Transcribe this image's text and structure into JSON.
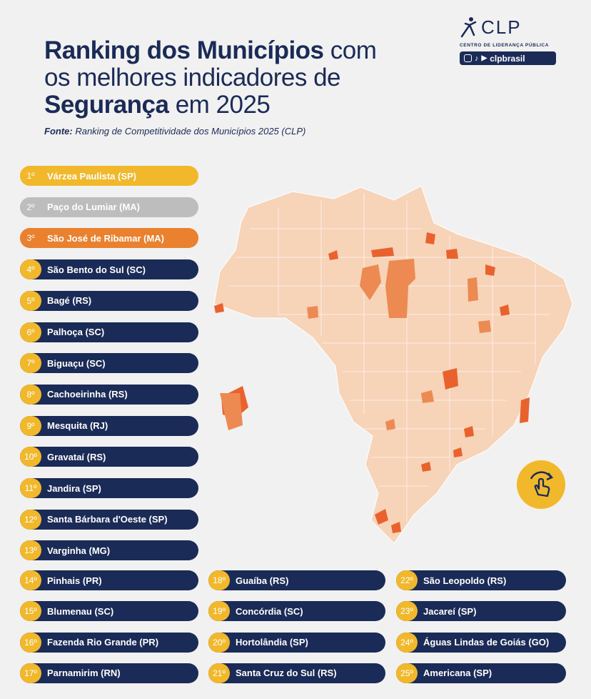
{
  "title": {
    "line1_bold": "Ranking dos Municípios",
    "line1_rest": " com",
    "line2": "os melhores indicadores de",
    "line3_bold": "Segurança",
    "line3_rest": " em 2025"
  },
  "source": {
    "label": "Fonte:",
    "text": " Ranking de Competitividade dos Municípios 2025 (CLP)"
  },
  "logo": {
    "name": "CLP",
    "subtitle": "CENTRO DE LIDERANÇA PÚBLICA",
    "handle": "clpbrasil",
    "icons": [
      "instagram-icon",
      "tiktok-icon",
      "youtube-icon"
    ]
  },
  "colors": {
    "navy": "#1b2b57",
    "gold": "#f1b82c",
    "silver": "#bdbdbd",
    "bronze": "#e9812f",
    "map_base": "#f7d3b8",
    "map_highlight": "#e9622e"
  },
  "ranking": [
    {
      "pos": "1º",
      "name": "Várzea Paulista (SP)",
      "style": "gold"
    },
    {
      "pos": "2º",
      "name": "Paço do Lumiar (MA)",
      "style": "silver"
    },
    {
      "pos": "3º",
      "name": "São José de Ribamar (MA)",
      "style": "bronze"
    },
    {
      "pos": "4º",
      "name": "São Bento do Sul (SC)",
      "style": "navy"
    },
    {
      "pos": "5º",
      "name": "Bagé (RS)",
      "style": "navy"
    },
    {
      "pos": "6º",
      "name": "Palhoça (SC)",
      "style": "navy"
    },
    {
      "pos": "7º",
      "name": "Biguaçu (SC)",
      "style": "navy"
    },
    {
      "pos": "8º",
      "name": "Cachoeirinha (RS)",
      "style": "navy"
    },
    {
      "pos": "9º",
      "name": "Mesquita (RJ)",
      "style": "navy"
    },
    {
      "pos": "10º",
      "name": "Gravataí (RS)",
      "style": "navy"
    },
    {
      "pos": "11º",
      "name": "Jandira (SP)",
      "style": "navy"
    },
    {
      "pos": "12º",
      "name": "Santa Bárbara d'Oeste (SP)",
      "style": "navy"
    },
    {
      "pos": "13º",
      "name": "Varginha (MG)",
      "style": "navy"
    },
    {
      "pos": "14º",
      "name": "Pinhais (PR)",
      "style": "navy"
    },
    {
      "pos": "15º",
      "name": "Blumenau (SC)",
      "style": "navy"
    },
    {
      "pos": "16º",
      "name": "Fazenda Rio Grande (PR)",
      "style": "navy"
    },
    {
      "pos": "17º",
      "name": "Parnamirim (RN)",
      "style": "navy"
    },
    {
      "pos": "18º",
      "name": "Guaíba (RS)",
      "style": "navy"
    },
    {
      "pos": "19º",
      "name": "Concórdia (SC)",
      "style": "navy"
    },
    {
      "pos": "20º",
      "name": "Hortolândia (SP)",
      "style": "navy"
    },
    {
      "pos": "21º",
      "name": "Santa Cruz do Sul (RS)",
      "style": "navy"
    },
    {
      "pos": "22º",
      "name": "São Leopoldo (RS)",
      "style": "navy"
    },
    {
      "pos": "23º",
      "name": "Jacareí (SP)",
      "style": "navy"
    },
    {
      "pos": "24º",
      "name": "Águas Lindas de Goiás (GO)",
      "style": "navy"
    },
    {
      "pos": "25º",
      "name": "Americana (SP)",
      "style": "navy"
    }
  ]
}
